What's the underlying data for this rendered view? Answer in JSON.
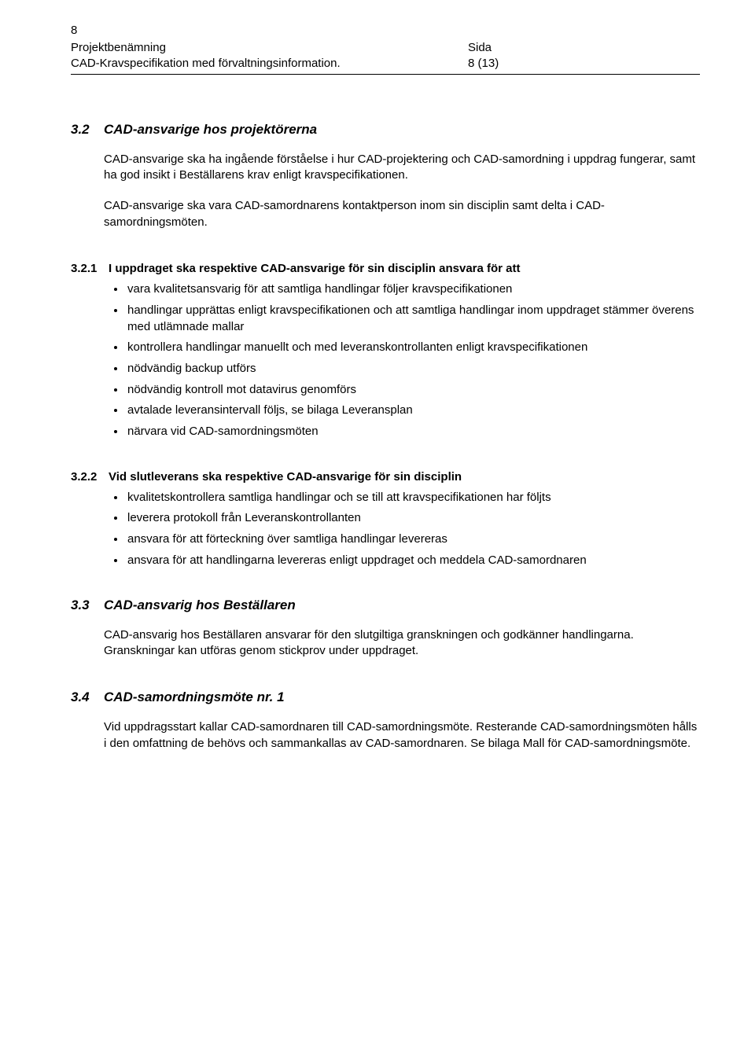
{
  "header": {
    "page_num_top": "8",
    "left_line1": "Projektbenämning",
    "left_line2": "CAD-Kravspecifikation med förvaltningsinformation.",
    "right_line1": "Sida",
    "right_line2": "8 (13)"
  },
  "s32": {
    "num": "3.2",
    "title": "CAD-ansvarige hos projektörerna",
    "para1": "CAD-ansvarige ska ha ingående förståelse i hur CAD-projektering och CAD-samordning i uppdrag fungerar, samt ha god insikt i Beställarens krav enligt kravspecifikationen.",
    "para2": "CAD-ansvarige ska vara CAD-samordnarens kontaktperson inom sin disciplin samt delta i CAD-samordningsmöten."
  },
  "s321": {
    "num": "3.2.1",
    "title": "I uppdraget ska respektive CAD-ansvarige för sin disciplin ansvara för att",
    "bullets": [
      "vara kvalitetsansvarig för att samtliga handlingar följer kravspecifikationen",
      "handlingar upprättas enligt kravspecifikationen och att samtliga handlingar inom uppdraget stämmer överens med utlämnade mallar",
      "kontrollera handlingar manuellt och med leveranskontrollanten enligt kravspecifikationen",
      "nödvändig backup utförs",
      "nödvändig kontroll mot datavirus genomförs",
      "avtalade leveransintervall följs, se bilaga Leveransplan",
      "närvara vid CAD-samordningsmöten"
    ]
  },
  "s322": {
    "num": "3.2.2",
    "title": "Vid slutleverans ska respektive CAD-ansvarige för sin disciplin",
    "bullets": [
      "kvalitetskontrollera samtliga handlingar och se till att kravspecifikationen har följts",
      "leverera protokoll från Leveranskontrollanten",
      "ansvara för att förteckning över samtliga handlingar levereras",
      "ansvara för att handlingarna levereras enligt uppdraget och meddela CAD-samordnaren"
    ]
  },
  "s33": {
    "num": "3.3",
    "title": "CAD-ansvarig hos Beställaren",
    "para1": "CAD-ansvarig hos Beställaren ansvarar för den slutgiltiga granskningen och godkänner handlingarna. Granskningar kan utföras genom stickprov under uppdraget."
  },
  "s34": {
    "num": "3.4",
    "title": "CAD-samordningsmöte nr. 1",
    "para1": "Vid uppdragsstart kallar CAD-samordnaren till CAD-samordningsmöte. Resterande CAD-samordningsmöten hålls i den omfattning de behövs och sammankallas av CAD-samordnaren. Se bilaga Mall för CAD-samordningsmöte."
  }
}
